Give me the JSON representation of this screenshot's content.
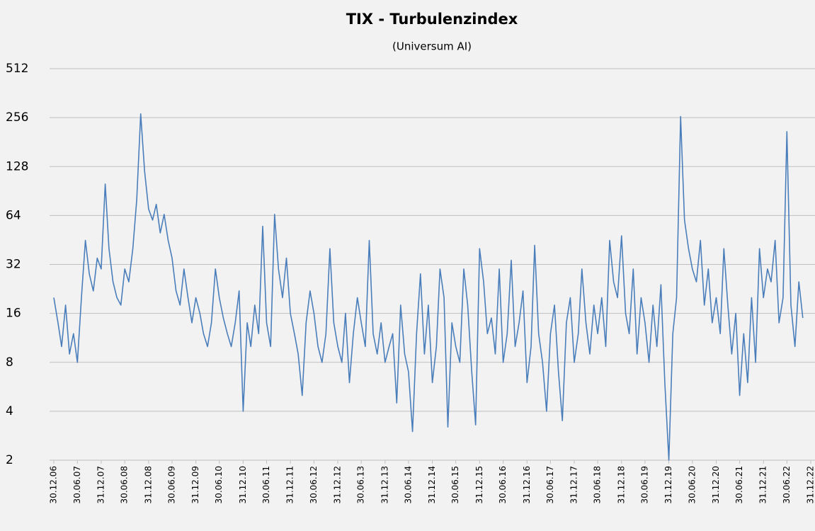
{
  "chart_data": {
    "type": "line",
    "title": "TIX - Turbulenzindex",
    "subtitle": "(Universum AI)",
    "x": [
      "30.12.06",
      "31.01.07",
      "28.02.07",
      "31.03.07",
      "30.04.07",
      "31.05.07",
      "30.06.07",
      "31.07.07",
      "31.08.07",
      "30.09.07",
      "31.10.07",
      "30.11.07",
      "31.12.07",
      "31.01.08",
      "29.02.08",
      "31.03.08",
      "30.04.08",
      "31.05.08",
      "30.06.08",
      "31.07.08",
      "31.08.08",
      "30.09.08",
      "31.10.08",
      "30.11.08",
      "31.12.08",
      "31.01.09",
      "28.02.09",
      "31.03.09",
      "30.04.09",
      "31.05.09",
      "30.06.09",
      "31.07.09",
      "31.08.09",
      "30.09.09",
      "31.10.09",
      "30.11.09",
      "31.12.09",
      "31.01.10",
      "28.02.10",
      "31.03.10",
      "30.04.10",
      "31.05.10",
      "30.06.10",
      "31.07.10",
      "31.08.10",
      "30.09.10",
      "31.10.10",
      "30.11.10",
      "31.12.10",
      "31.01.11",
      "28.02.11",
      "31.03.11",
      "30.04.11",
      "31.05.11",
      "30.06.11",
      "31.07.11",
      "31.08.11",
      "30.09.11",
      "31.10.11",
      "30.11.11",
      "31.12.11",
      "31.01.12",
      "29.02.12",
      "31.03.12",
      "30.04.12",
      "31.05.12",
      "30.06.12",
      "31.07.12",
      "31.08.12",
      "30.09.12",
      "31.10.12",
      "30.11.12",
      "31.12.12",
      "31.01.13",
      "28.02.13",
      "31.03.13",
      "30.04.13",
      "31.05.13",
      "30.06.13",
      "31.07.13",
      "31.08.13",
      "30.09.13",
      "31.10.13",
      "30.11.13",
      "31.12.13",
      "31.01.14",
      "28.02.14",
      "31.03.14",
      "30.04.14",
      "31.05.14",
      "30.06.14",
      "31.07.14",
      "31.08.14",
      "30.09.14",
      "31.10.14",
      "30.11.14",
      "31.12.14",
      "31.01.15",
      "28.02.15",
      "31.03.15",
      "30.04.15",
      "31.05.15",
      "30.06.15",
      "31.07.15",
      "31.08.15",
      "30.09.15",
      "31.10.15",
      "30.11.15",
      "31.12.15",
      "31.01.16",
      "29.02.16",
      "31.03.16",
      "30.04.16",
      "31.05.16",
      "30.06.16",
      "31.07.16",
      "31.08.16",
      "30.09.16",
      "31.10.16",
      "30.11.16",
      "31.12.16",
      "31.01.17",
      "28.02.17",
      "31.03.17",
      "30.04.17",
      "31.05.17",
      "30.06.17",
      "31.07.17",
      "31.08.17",
      "30.09.17",
      "31.10.17",
      "30.11.17",
      "31.12.17",
      "31.01.18",
      "28.02.18",
      "31.03.18",
      "30.04.18",
      "31.05.18",
      "30.06.18",
      "31.07.18",
      "31.08.18",
      "30.09.18",
      "31.10.18",
      "30.11.18",
      "31.12.18",
      "31.01.19",
      "28.02.19",
      "31.03.19",
      "30.04.19",
      "31.05.19",
      "30.06.19",
      "31.07.19",
      "31.08.19",
      "30.09.19",
      "31.10.19",
      "30.11.19",
      "31.12.19",
      "31.01.20",
      "29.02.20",
      "31.03.20",
      "30.04.20",
      "31.05.20",
      "30.06.20",
      "31.07.20",
      "31.08.20",
      "30.09.20",
      "31.10.20",
      "30.11.20",
      "31.12.20",
      "31.01.21",
      "28.02.21",
      "31.03.21",
      "30.04.21",
      "31.05.21",
      "30.06.21",
      "31.07.21",
      "31.08.21",
      "30.09.21",
      "31.10.21",
      "30.11.21",
      "31.12.21",
      "31.01.22",
      "28.02.22",
      "31.03.22",
      "30.04.22",
      "31.05.22",
      "30.06.22",
      "31.07.22",
      "31.08.22",
      "30.09.22",
      "31.10.22"
    ],
    "series": [
      {
        "color": "#4a7ebb",
        "values": [
          20,
          14,
          10,
          18,
          9,
          12,
          8,
          20,
          45,
          28,
          22,
          35,
          30,
          100,
          40,
          25,
          20,
          18,
          30,
          25,
          40,
          80,
          270,
          120,
          70,
          60,
          75,
          50,
          65,
          45,
          35,
          22,
          18,
          30,
          20,
          14,
          20,
          16,
          12,
          10,
          14,
          30,
          20,
          15,
          12,
          10,
          14,
          22,
          4,
          14,
          10,
          18,
          12,
          55,
          14,
          10,
          65,
          30,
          20,
          35,
          16,
          12,
          9,
          5,
          14,
          22,
          16,
          10,
          8,
          12,
          40,
          14,
          10,
          8,
          16,
          6,
          12,
          20,
          14,
          10,
          45,
          12,
          9,
          14,
          8,
          10,
          12,
          4.5,
          18,
          9,
          7,
          3,
          12,
          28,
          9,
          18,
          6,
          10,
          30,
          20,
          3.2,
          14,
          10,
          8,
          30,
          18,
          7,
          3.3,
          40,
          25,
          12,
          15,
          9,
          30,
          8,
          12,
          34,
          10,
          14,
          22,
          6,
          10,
          42,
          12,
          8,
          4,
          12,
          18,
          7,
          3.5,
          14,
          20,
          8,
          12,
          30,
          14,
          9,
          18,
          12,
          20,
          10,
          45,
          25,
          20,
          48,
          16,
          12,
          30,
          9,
          20,
          14,
          8,
          18,
          10,
          24,
          6,
          2,
          12,
          20,
          260,
          60,
          40,
          30,
          25,
          45,
          18,
          30,
          14,
          20,
          12,
          40,
          18,
          9,
          16,
          5,
          12,
          6,
          20,
          8,
          40,
          20,
          30,
          25,
          45,
          14,
          20,
          210,
          18,
          10,
          25,
          15
        ]
      }
    ],
    "xlim": [
      "30.12.06",
      "31.12.22"
    ],
    "xticks": [
      "30.12.06",
      "30.06.07",
      "31.12.07",
      "30.06.08",
      "31.12.08",
      "30.06.09",
      "31.12.09",
      "30.06.10",
      "31.12.10",
      "30.06.11",
      "31.12.11",
      "30.06.12",
      "31.12.12",
      "30.06.13",
      "31.12.13",
      "30.06.14",
      "31.12.14",
      "30.06.15",
      "31.12.15",
      "30.06.16",
      "31.12.16",
      "30.06.17",
      "31.12.17",
      "30.06.18",
      "31.12.18",
      "30.06.19",
      "31.12.19",
      "30.06.20",
      "31.12.20",
      "30.06.21",
      "31.12.21",
      "30.06.22",
      "31.12.22"
    ],
    "ylim": [
      2,
      512
    ],
    "yticks": [
      2,
      4,
      8,
      16,
      32,
      64,
      128,
      256,
      512
    ],
    "log_scale": true,
    "grid": true
  }
}
